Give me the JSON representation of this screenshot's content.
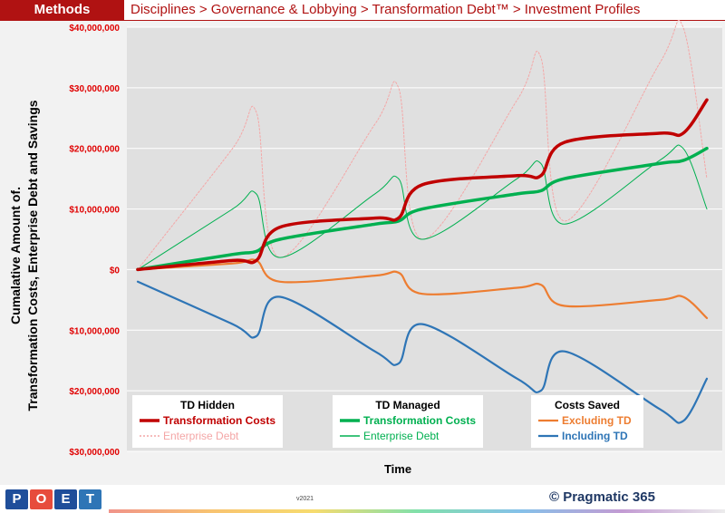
{
  "header": {
    "methods_label": "Methods",
    "breadcrumb": "Disciplines > Governance & Lobbying > Transformation Debt™ > Investment Profiles"
  },
  "footer": {
    "logo_letters": [
      "P",
      "O",
      "E",
      "T"
    ],
    "logo_colors": [
      "#1f4e9a",
      "#e74c3c",
      "#1f4e9a",
      "#2e75b6"
    ],
    "version": "v2021",
    "brand": "© Pragmatic 365"
  },
  "colors": {
    "header_red": "#b01212",
    "transformation_costs_hidden": "#c00000",
    "enterprise_debt_hidden": "#f4a6a6",
    "transformation_costs_managed": "#00b050",
    "enterprise_debt_managed": "#00b050",
    "excluding_td": "#ed7d31",
    "including_td": "#2e75b6"
  },
  "chart_data": {
    "type": "line",
    "ylabel_line1": "Cumalative Amount of.",
    "ylabel_line2": "Transformation Costs, Enterprise Debt and Savings",
    "xlabel": "Time",
    "ylim": [
      -30000000,
      40000000
    ],
    "yticks": [
      {
        "value": 40000000,
        "label": "$40,000,000"
      },
      {
        "value": 30000000,
        "label": "$30,000,000"
      },
      {
        "value": 20000000,
        "label": "$20,000,000"
      },
      {
        "value": 10000000,
        "label": "$10,000,000"
      },
      {
        "value": 0,
        "label": "$0"
      },
      {
        "value": -10000000,
        "label": "$10,000,000"
      },
      {
        "value": -20000000,
        "label": "$20,000,000"
      },
      {
        "value": -30000000,
        "label": "$30,000,000"
      }
    ],
    "grid": true,
    "x": [
      0,
      4,
      5,
      6,
      10,
      11,
      12,
      16,
      17,
      18,
      22,
      23,
      24
    ],
    "series": [
      {
        "group": "TD Hidden",
        "name": "Transformation Costs",
        "color": "#c00000",
        "style": "bold",
        "values": [
          0,
          1500000,
          1500000,
          7000000,
          8500000,
          8500000,
          14000000,
          15500000,
          15500000,
          21000000,
          22500000,
          22500000,
          28000000
        ]
      },
      {
        "group": "TD Hidden",
        "name": "Enterprise Debt",
        "color": "#f4a6a6",
        "style": "dotted",
        "values": [
          0,
          20000000,
          26000000,
          2000000,
          24000000,
          30000000,
          5000000,
          28000000,
          35000000,
          8000000,
          34000000,
          40000000,
          15000000
        ]
      },
      {
        "group": "TD Managed",
        "name": "Transformation Costs",
        "color": "#00b050",
        "style": "bold",
        "values": [
          0,
          2500000,
          3000000,
          5000000,
          7500000,
          8000000,
          10000000,
          12500000,
          13000000,
          15000000,
          17500000,
          18000000,
          20000000
        ]
      },
      {
        "group": "TD Managed",
        "name": "Enterprise Debt",
        "color": "#00b050",
        "style": "thin",
        "values": [
          0,
          10000000,
          12500000,
          2000000,
          12500000,
          15000000,
          5000000,
          15000000,
          17500000,
          7500000,
          18000000,
          20000000,
          10000000
        ]
      },
      {
        "group": "Costs Saved",
        "name": "Excluding TD",
        "color": "#ed7d31",
        "style": "normal",
        "values": [
          0,
          1000000,
          1500000,
          -2000000,
          -1000000,
          -500000,
          -4000000,
          -3000000,
          -2500000,
          -6000000,
          -5000000,
          -4500000,
          -8000000
        ]
      },
      {
        "group": "Costs Saved",
        "name": "Including TD",
        "color": "#2e75b6",
        "style": "normal",
        "values": [
          -2000000,
          -9000000,
          -11000000,
          -4500000,
          -13500000,
          -15500000,
          -9000000,
          -18000000,
          -20000000,
          -13500000,
          -23000000,
          -25000000,
          -18000000
        ]
      }
    ],
    "legend": {
      "placement": "bottom",
      "groups": [
        {
          "title": "TD Hidden",
          "items": [
            "Transformation Costs",
            "Enterprise Debt"
          ]
        },
        {
          "title": "TD Managed",
          "items": [
            "Transformation Costs",
            "Enterprise Debt"
          ]
        },
        {
          "title": "Costs Saved",
          "items": [
            "Excluding TD",
            "Including TD"
          ]
        }
      ]
    }
  }
}
